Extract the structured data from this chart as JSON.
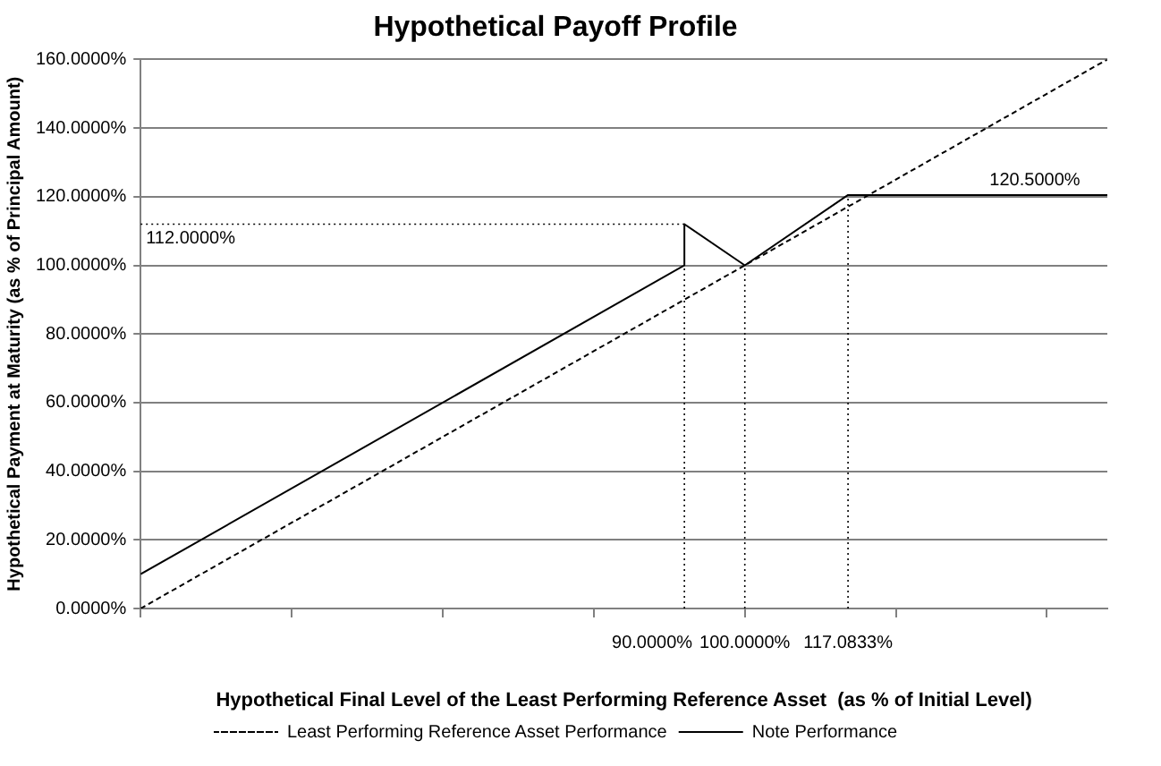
{
  "chart_data": {
    "type": "line",
    "title": "Hypothetical Payoff Profile",
    "xlabel": "Hypothetical Final Level of the Least Performing Reference Asset  (as % of Initial Level)",
    "ylabel": "Hypothetical Payment at Maturity (as % of Principal Amount)",
    "xlim": [
      0,
      160
    ],
    "xticks": [
      {
        "value": 0,
        "label": null
      },
      {
        "value": 25,
        "label": null
      },
      {
        "value": 50,
        "label": null
      },
      {
        "value": 75,
        "label": null
      },
      {
        "value": 100,
        "label": null
      },
      {
        "value": 125,
        "label": null
      },
      {
        "value": 150,
        "label": null
      }
    ],
    "ylim": [
      0,
      160
    ],
    "yticks": [
      {
        "value": 0,
        "label": "0.0000%"
      },
      {
        "value": 20,
        "label": "20.0000%"
      },
      {
        "value": 40,
        "label": "40.0000%"
      },
      {
        "value": 60,
        "label": "60.0000%"
      },
      {
        "value": 80,
        "label": "80.0000%"
      },
      {
        "value": 100,
        "label": "100.0000%"
      },
      {
        "value": 120,
        "label": "120.0000%"
      },
      {
        "value": 140,
        "label": "140.0000%"
      },
      {
        "value": 160,
        "label": "160.0000%"
      }
    ],
    "tick_labels": "y",
    "grid": "y",
    "legend": "bottom",
    "marker": "none",
    "series": [
      {
        "name": "Least Performing Reference Asset Performance",
        "color": "#000000",
        "line_style": "dashed",
        "x": [
          0,
          160
        ],
        "values": [
          0,
          160
        ]
      },
      {
        "name": "Note Performance",
        "color": "#000000",
        "line_style": "solid",
        "x": [
          0,
          90,
          90,
          100,
          117.0833,
          160
        ],
        "values": [
          10,
          100,
          112,
          100,
          120.5,
          120.5
        ]
      }
    ],
    "ref_lines": [
      {
        "axis": "x",
        "value": 90,
        "label": "90.0000%",
        "line_style": "dotted"
      },
      {
        "axis": "x",
        "value": 100,
        "label": "100.0000%",
        "line_style": "dotted"
      },
      {
        "axis": "x",
        "value": 117.0833,
        "label": "117.0833%",
        "line_style": "dotted"
      },
      {
        "axis": "y",
        "value": 112,
        "label": "112.0000%",
        "line_style": "dotted"
      }
    ],
    "annotations": [
      {
        "text": "120.5000%",
        "x": 148,
        "y": 120.5
      }
    ]
  }
}
